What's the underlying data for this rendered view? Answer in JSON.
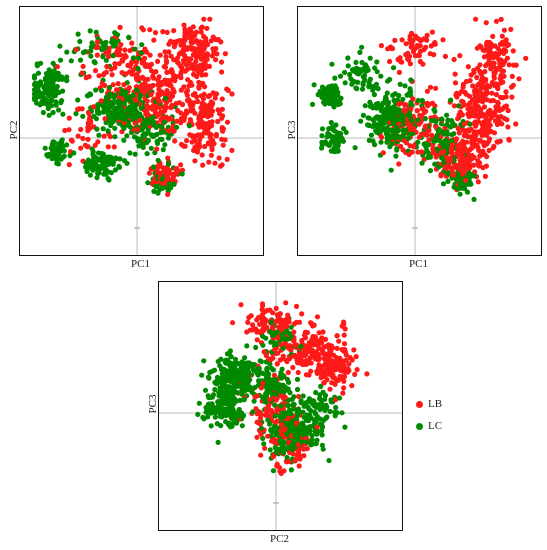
{
  "chart_data": [
    {
      "type": "scatter",
      "title": "",
      "xlabel": "PC1",
      "ylabel": "PC2",
      "series": [
        {
          "name": "LB",
          "color": "#ff1a1a",
          "clusters": [
            {
              "cx": 0.72,
              "cy": 0.18,
              "rx": 0.12,
              "ry": 0.14,
              "n": 170
            },
            {
              "cx": 0.55,
              "cy": 0.4,
              "rx": 0.2,
              "ry": 0.18,
              "n": 220
            },
            {
              "cx": 0.78,
              "cy": 0.52,
              "rx": 0.1,
              "ry": 0.18,
              "n": 150
            },
            {
              "cx": 0.6,
              "cy": 0.75,
              "rx": 0.08,
              "ry": 0.07,
              "n": 70
            },
            {
              "cx": 0.4,
              "cy": 0.2,
              "rx": 0.2,
              "ry": 0.12,
              "n": 90
            },
            {
              "cx": 0.25,
              "cy": 0.55,
              "rx": 0.12,
              "ry": 0.15,
              "n": 40
            }
          ]
        },
        {
          "name": "LC",
          "color": "#008a00",
          "clusters": [
            {
              "cx": 0.08,
              "cy": 0.35,
              "rx": 0.07,
              "ry": 0.12,
              "n": 110
            },
            {
              "cx": 0.12,
              "cy": 0.64,
              "rx": 0.05,
              "ry": 0.05,
              "n": 60
            },
            {
              "cx": 0.4,
              "cy": 0.45,
              "rx": 0.15,
              "ry": 0.12,
              "n": 220
            },
            {
              "cx": 0.33,
              "cy": 0.7,
              "rx": 0.08,
              "ry": 0.06,
              "n": 90
            },
            {
              "cx": 0.55,
              "cy": 0.55,
              "rx": 0.1,
              "ry": 0.15,
              "n": 80
            },
            {
              "cx": 0.6,
              "cy": 0.8,
              "rx": 0.06,
              "ry": 0.05,
              "n": 40
            },
            {
              "cx": 0.3,
              "cy": 0.15,
              "rx": 0.18,
              "ry": 0.1,
              "n": 60
            }
          ]
        }
      ]
    },
    {
      "type": "scatter",
      "title": "",
      "xlabel": "PC1",
      "ylabel": "PC3",
      "series": [
        {
          "name": "LB",
          "color": "#ff1a1a",
          "clusters": [
            {
              "cx": 0.78,
              "cy": 0.45,
              "rx": 0.12,
              "ry": 0.22,
              "n": 260
            },
            {
              "cx": 0.68,
              "cy": 0.68,
              "rx": 0.1,
              "ry": 0.12,
              "n": 160
            },
            {
              "cx": 0.85,
              "cy": 0.2,
              "rx": 0.08,
              "ry": 0.12,
              "n": 90
            },
            {
              "cx": 0.48,
              "cy": 0.52,
              "rx": 0.12,
              "ry": 0.15,
              "n": 120
            },
            {
              "cx": 0.48,
              "cy": 0.15,
              "rx": 0.14,
              "ry": 0.08,
              "n": 60
            }
          ]
        },
        {
          "name": "LC",
          "color": "#008a00",
          "clusters": [
            {
              "cx": 0.1,
              "cy": 0.38,
              "rx": 0.05,
              "ry": 0.05,
              "n": 60
            },
            {
              "cx": 0.12,
              "cy": 0.58,
              "rx": 0.05,
              "ry": 0.06,
              "n": 60
            },
            {
              "cx": 0.38,
              "cy": 0.5,
              "rx": 0.12,
              "ry": 0.14,
              "n": 230
            },
            {
              "cx": 0.6,
              "cy": 0.6,
              "rx": 0.1,
              "ry": 0.18,
              "n": 120
            },
            {
              "cx": 0.7,
              "cy": 0.78,
              "rx": 0.06,
              "ry": 0.06,
              "n": 50
            },
            {
              "cx": 0.25,
              "cy": 0.28,
              "rx": 0.12,
              "ry": 0.1,
              "n": 60
            }
          ]
        }
      ]
    },
    {
      "type": "scatter",
      "title": "",
      "xlabel": "PC2",
      "ylabel": "PC3",
      "series": [
        {
          "name": "LB",
          "color": "#ff1a1a",
          "clusters": [
            {
              "cx": 0.62,
              "cy": 0.28,
              "rx": 0.18,
              "ry": 0.12,
              "n": 190
            },
            {
              "cx": 0.75,
              "cy": 0.38,
              "rx": 0.1,
              "ry": 0.1,
              "n": 90
            },
            {
              "cx": 0.45,
              "cy": 0.15,
              "rx": 0.12,
              "ry": 0.08,
              "n": 80
            },
            {
              "cx": 0.48,
              "cy": 0.58,
              "rx": 0.12,
              "ry": 0.18,
              "n": 120
            },
            {
              "cx": 0.55,
              "cy": 0.75,
              "rx": 0.1,
              "ry": 0.1,
              "n": 60
            }
          ]
        },
        {
          "name": "LC",
          "color": "#008a00",
          "clusters": [
            {
              "cx": 0.3,
              "cy": 0.4,
              "rx": 0.1,
              "ry": 0.1,
              "n": 200
            },
            {
              "cx": 0.25,
              "cy": 0.55,
              "rx": 0.1,
              "ry": 0.12,
              "n": 150
            },
            {
              "cx": 0.55,
              "cy": 0.65,
              "rx": 0.12,
              "ry": 0.14,
              "n": 240
            },
            {
              "cx": 0.45,
              "cy": 0.45,
              "rx": 0.1,
              "ry": 0.1,
              "n": 100
            },
            {
              "cx": 0.5,
              "cy": 0.22,
              "rx": 0.08,
              "ry": 0.08,
              "n": 50
            },
            {
              "cx": 0.7,
              "cy": 0.55,
              "rx": 0.08,
              "ry": 0.1,
              "n": 50
            }
          ]
        }
      ]
    }
  ],
  "legend": {
    "items": [
      {
        "label": "LB",
        "color": "#ff1a1a"
      },
      {
        "label": "LC",
        "color": "#008a00"
      }
    ]
  }
}
